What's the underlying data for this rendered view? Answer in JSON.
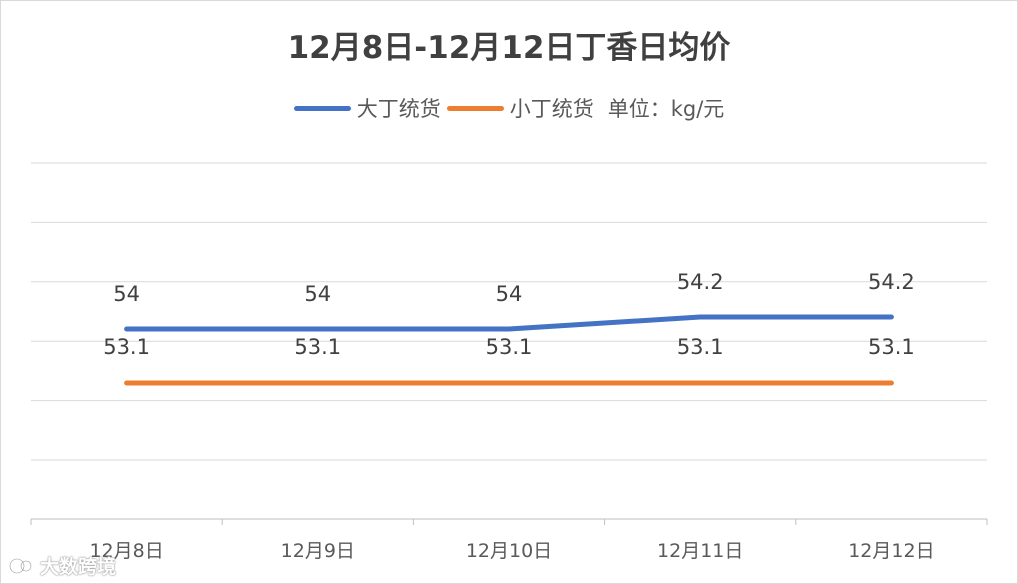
{
  "chart_data": {
    "type": "line",
    "title": "12月8日-12月12日丁香日均价",
    "categories": [
      "12月8日",
      "12月9日",
      "12月10日",
      "12月11日",
      "12月12日"
    ],
    "series": [
      {
        "name": "大丁统货",
        "values": [
          54,
          54,
          54,
          54.2,
          54.2
        ],
        "color": "#4472C4"
      },
      {
        "name": "小丁统货",
        "values": [
          53.1,
          53.1,
          53.1,
          53.1,
          53.1
        ],
        "color": "#ED7D31"
      }
    ],
    "legend_note": "单位：kg/元",
    "xlabel": "",
    "ylabel": "",
    "grid": true,
    "legend_position": "top"
  },
  "watermark": "大数跨境"
}
